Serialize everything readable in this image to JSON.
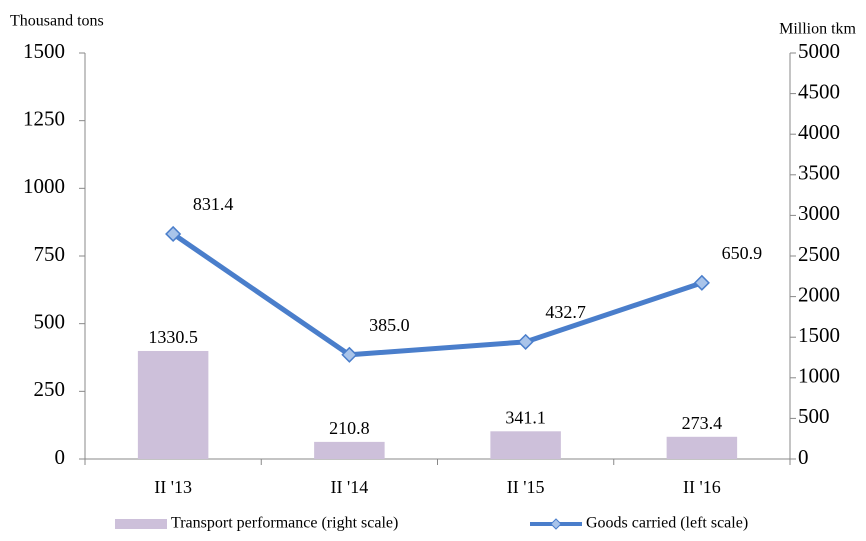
{
  "chart_data": {
    "type": "bar-line",
    "y_label": "Thousand tons",
    "y2_label": "Million tkm",
    "categories": [
      "II '13",
      "II '14",
      "II '15",
      "II '16"
    ],
    "series": [
      {
        "name": "Transport performance (right scale)",
        "type": "bar",
        "axis": "y2",
        "color": "#cdc0da",
        "values": [
          1330.5,
          210.8,
          341.1,
          273.4
        ]
      },
      {
        "name": "Goods carried (left scale)",
        "type": "line",
        "axis": "y",
        "color": "#4a7ecb",
        "marker_color": "#a9c4ea",
        "values": [
          831.4,
          385.0,
          432.7,
          650.9
        ],
        "value_labels": [
          "831.4",
          "385.0",
          "432.7",
          "650.9"
        ]
      }
    ],
    "ylim": [
      0,
      1500
    ],
    "yticks": [
      0,
      250,
      500,
      750,
      1000,
      1250,
      1500
    ],
    "y2lim": [
      0,
      5000
    ],
    "y2ticks": [
      0,
      500,
      1000,
      1500,
      2000,
      2500,
      3000,
      3500,
      4000,
      4500,
      5000
    ],
    "legend": "bottom"
  }
}
